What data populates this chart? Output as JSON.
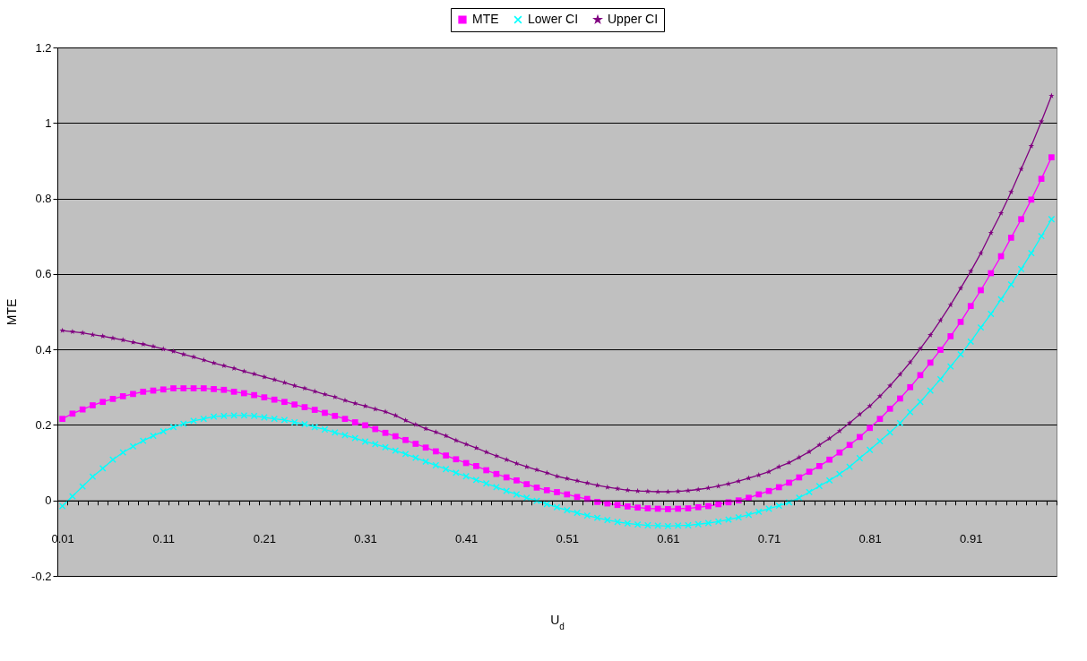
{
  "chart_data": {
    "type": "line",
    "xlabel": "U$_{d}$",
    "ylabel": "MTE",
    "categories": [
      "0.01",
      null,
      null,
      null,
      null,
      null,
      null,
      null,
      null,
      null,
      "0.11",
      null,
      null,
      null,
      null,
      null,
      null,
      null,
      null,
      null,
      "0.21",
      null,
      null,
      null,
      null,
      null,
      null,
      null,
      null,
      null,
      "0.31",
      null,
      null,
      null,
      null,
      null,
      null,
      null,
      null,
      null,
      "0.41",
      null,
      null,
      null,
      null,
      null,
      null,
      null,
      null,
      null,
      "0.51",
      null,
      null,
      null,
      null,
      null,
      null,
      null,
      null,
      null,
      "0.61",
      null,
      null,
      null,
      null,
      null,
      null,
      null,
      null,
      null,
      "0.71",
      null,
      null,
      null,
      null,
      null,
      null,
      null,
      null,
      null,
      "0.81",
      null,
      null,
      null,
      null,
      null,
      null,
      null,
      null,
      null,
      "0.91",
      null,
      null,
      null,
      null,
      null,
      null,
      null,
      null
    ],
    "ylim": [
      -0.2,
      1.2
    ],
    "yticks": [
      -0.2,
      0,
      0.2,
      0.4,
      0.6,
      0.8,
      1,
      1.2
    ],
    "grid": "y",
    "legend": "top",
    "series": [
      {
        "name": "MTE",
        "color": "#ff00ff",
        "marker": "square",
        "values": [
          0.216,
          0.23,
          0.241,
          0.252,
          0.261,
          0.269,
          0.276,
          0.282,
          0.288,
          0.291,
          0.294,
          0.297,
          0.297,
          0.297,
          0.297,
          0.295,
          0.293,
          0.288,
          0.284,
          0.279,
          0.273,
          0.267,
          0.261,
          0.254,
          0.247,
          0.24,
          0.232,
          0.224,
          0.216,
          0.207,
          0.199,
          0.189,
          0.179,
          0.17,
          0.16,
          0.15,
          0.14,
          0.13,
          0.119,
          0.109,
          0.099,
          0.091,
          0.08,
          0.07,
          0.061,
          0.053,
          0.043,
          0.034,
          0.027,
          0.022,
          0.016,
          0.009,
          0.004,
          -0.004,
          -0.008,
          -0.012,
          -0.016,
          -0.019,
          -0.021,
          -0.022,
          -0.023,
          -0.022,
          -0.021,
          -0.018,
          -0.015,
          -0.01,
          -0.005,
          0.0,
          0.007,
          0.016,
          0.025,
          0.035,
          0.047,
          0.061,
          0.076,
          0.091,
          0.108,
          0.127,
          0.147,
          0.168,
          0.192,
          0.216,
          0.243,
          0.27,
          0.3,
          0.332,
          0.365,
          0.399,
          0.435,
          0.473,
          0.515,
          0.557,
          0.602,
          0.647,
          0.696,
          0.745,
          0.797,
          0.852,
          0.909
        ]
      },
      {
        "name": "Lower CI",
        "color": "#00ffff",
        "marker": "cross",
        "values": [
          -0.015,
          0.011,
          0.037,
          0.063,
          0.085,
          0.108,
          0.127,
          0.143,
          0.158,
          0.171,
          0.183,
          0.194,
          0.203,
          0.211,
          0.216,
          0.222,
          0.224,
          0.225,
          0.225,
          0.224,
          0.22,
          0.216,
          0.213,
          0.207,
          0.202,
          0.194,
          0.188,
          0.18,
          0.173,
          0.165,
          0.156,
          0.149,
          0.141,
          0.132,
          0.123,
          0.113,
          0.103,
          0.093,
          0.083,
          0.073,
          0.064,
          0.054,
          0.045,
          0.035,
          0.025,
          0.016,
          0.007,
          -0.001,
          -0.01,
          -0.018,
          -0.026,
          -0.033,
          -0.04,
          -0.046,
          -0.052,
          -0.057,
          -0.061,
          -0.064,
          -0.066,
          -0.067,
          -0.068,
          -0.067,
          -0.066,
          -0.063,
          -0.06,
          -0.056,
          -0.051,
          -0.045,
          -0.038,
          -0.03,
          -0.022,
          -0.014,
          -0.005,
          0.007,
          0.022,
          0.038,
          0.053,
          0.07,
          0.089,
          0.112,
          0.134,
          0.157,
          0.18,
          0.205,
          0.234,
          0.261,
          0.291,
          0.321,
          0.355,
          0.387,
          0.421,
          0.458,
          0.494,
          0.533,
          0.572,
          0.613,
          0.655,
          0.7,
          0.745
        ]
      },
      {
        "name": "Upper CI",
        "color": "#800080",
        "marker": "star",
        "values": [
          0.45,
          0.447,
          0.444,
          0.439,
          0.435,
          0.43,
          0.425,
          0.419,
          0.414,
          0.408,
          0.401,
          0.395,
          0.387,
          0.38,
          0.372,
          0.364,
          0.357,
          0.35,
          0.342,
          0.335,
          0.327,
          0.32,
          0.312,
          0.304,
          0.297,
          0.289,
          0.281,
          0.274,
          0.265,
          0.257,
          0.25,
          0.242,
          0.235,
          0.225,
          0.212,
          0.201,
          0.19,
          0.181,
          0.171,
          0.159,
          0.149,
          0.139,
          0.128,
          0.118,
          0.108,
          0.098,
          0.089,
          0.081,
          0.073,
          0.064,
          0.058,
          0.052,
          0.046,
          0.04,
          0.035,
          0.031,
          0.027,
          0.025,
          0.024,
          0.023,
          0.023,
          0.024,
          0.026,
          0.029,
          0.033,
          0.038,
          0.044,
          0.051,
          0.059,
          0.067,
          0.076,
          0.089,
          0.1,
          0.114,
          0.129,
          0.147,
          0.164,
          0.184,
          0.205,
          0.228,
          0.25,
          0.276,
          0.304,
          0.334,
          0.366,
          0.402,
          0.438,
          0.477,
          0.518,
          0.562,
          0.607,
          0.655,
          0.709,
          0.761,
          0.817,
          0.878,
          0.939,
          1.004,
          1.072
        ]
      }
    ]
  }
}
